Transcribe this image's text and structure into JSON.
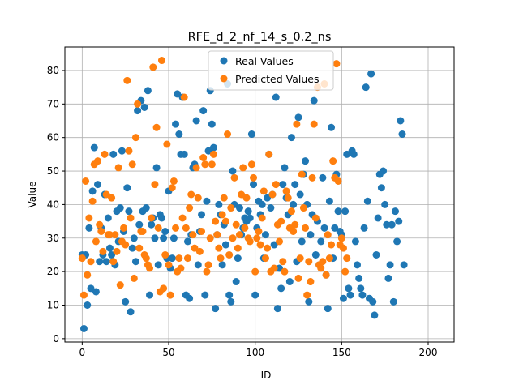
{
  "chart_data": {
    "type": "scatter",
    "title": "RFE_d_2_nf_14_s_0.2_ns",
    "xlabel": "ID",
    "ylabel": "Value",
    "xlim": [
      -10,
      215
    ],
    "ylim": [
      -1,
      87
    ],
    "grid": true,
    "legend_position": "top-right",
    "x_ticks": [
      0,
      50,
      100,
      150,
      200
    ],
    "y_ticks": [
      0,
      10,
      20,
      30,
      40,
      50,
      60,
      70,
      80
    ],
    "series": [
      {
        "name": "Real Values",
        "color": "#1f77b4",
        "points": [
          [
            0,
            25
          ],
          [
            1,
            3
          ],
          [
            2,
            25
          ],
          [
            3,
            10
          ],
          [
            4,
            33
          ],
          [
            5,
            15
          ],
          [
            6,
            44
          ],
          [
            7,
            57
          ],
          [
            8,
            14
          ],
          [
            9,
            46
          ],
          [
            10,
            23
          ],
          [
            11,
            33
          ],
          [
            12,
            25
          ],
          [
            13,
            43
          ],
          [
            14,
            23
          ],
          [
            15,
            36
          ],
          [
            16,
            27
          ],
          [
            17,
            25
          ],
          [
            18,
            55
          ],
          [
            19,
            22
          ],
          [
            20,
            38
          ],
          [
            21,
            29
          ],
          [
            22,
            39
          ],
          [
            23,
            56
          ],
          [
            24,
            32
          ],
          [
            25,
            11
          ],
          [
            26,
            45
          ],
          [
            27,
            38
          ],
          [
            28,
            8
          ],
          [
            29,
            27
          ],
          [
            30,
            30
          ],
          [
            31,
            23
          ],
          [
            32,
            68
          ],
          [
            33,
            34
          ],
          [
            34,
            71
          ],
          [
            35,
            38
          ],
          [
            36,
            69
          ],
          [
            37,
            39
          ],
          [
            38,
            74
          ],
          [
            39,
            13
          ],
          [
            40,
            34
          ],
          [
            41,
            36
          ],
          [
            42,
            30
          ],
          [
            43,
            51
          ],
          [
            44,
            22
          ],
          [
            45,
            37
          ],
          [
            46,
            36
          ],
          [
            47,
            30
          ],
          [
            48,
            32
          ],
          [
            49,
            24
          ],
          [
            50,
            44
          ],
          [
            51,
            21
          ],
          [
            52,
            24
          ],
          [
            53,
            30
          ],
          [
            54,
            64
          ],
          [
            55,
            73
          ],
          [
            56,
            61
          ],
          [
            57,
            55
          ],
          [
            58,
            72
          ],
          [
            59,
            55
          ],
          [
            60,
            13
          ],
          [
            61,
            29
          ],
          [
            62,
            12
          ],
          [
            63,
            31
          ],
          [
            64,
            51
          ],
          [
            65,
            52
          ],
          [
            66,
            65
          ],
          [
            67,
            22
          ],
          [
            68,
            32
          ],
          [
            69,
            37
          ],
          [
            70,
            68
          ],
          [
            71,
            13
          ],
          [
            72,
            41
          ],
          [
            73,
            56
          ],
          [
            74,
            74
          ],
          [
            75,
            64
          ],
          [
            76,
            57
          ],
          [
            77,
            9
          ],
          [
            78,
            31
          ],
          [
            79,
            40
          ],
          [
            80,
            37
          ],
          [
            81,
            22
          ],
          [
            82,
            34
          ],
          [
            83,
            28
          ],
          [
            84,
            76
          ],
          [
            85,
            13
          ],
          [
            86,
            11
          ],
          [
            87,
            50
          ],
          [
            88,
            40
          ],
          [
            89,
            17
          ],
          [
            90,
            24
          ],
          [
            91,
            39
          ],
          [
            92,
            31
          ],
          [
            93,
            33
          ],
          [
            94,
            36
          ],
          [
            95,
            35
          ],
          [
            96,
            38
          ],
          [
            97,
            36
          ],
          [
            98,
            61
          ],
          [
            99,
            46
          ],
          [
            100,
            13
          ],
          [
            101,
            33
          ],
          [
            102,
            41
          ],
          [
            103,
            37
          ],
          [
            104,
            40
          ],
          [
            105,
            24
          ],
          [
            106,
            31
          ],
          [
            107,
            42
          ],
          [
            108,
            55
          ],
          [
            109,
            39
          ],
          [
            110,
            43
          ],
          [
            111,
            28
          ],
          [
            112,
            72
          ],
          [
            113,
            9
          ],
          [
            114,
            21
          ],
          [
            115,
            15
          ],
          [
            116,
            46
          ],
          [
            117,
            51
          ],
          [
            118,
            42
          ],
          [
            119,
            37
          ],
          [
            120,
            17
          ],
          [
            121,
            60
          ],
          [
            122,
            40
          ],
          [
            123,
            46
          ],
          [
            124,
            23
          ],
          [
            125,
            66
          ],
          [
            126,
            43
          ],
          [
            127,
            29
          ],
          [
            128,
            49
          ],
          [
            129,
            53
          ],
          [
            130,
            40
          ],
          [
            131,
            11
          ],
          [
            132,
            31
          ],
          [
            133,
            37
          ],
          [
            134,
            71
          ],
          [
            135,
            25
          ],
          [
            136,
            35
          ],
          [
            137,
            22
          ],
          [
            138,
            29
          ],
          [
            139,
            48
          ],
          [
            140,
            33
          ],
          [
            141,
            19
          ],
          [
            142,
            9
          ],
          [
            143,
            41
          ],
          [
            144,
            63
          ],
          [
            145,
            24
          ],
          [
            146,
            33
          ],
          [
            147,
            49
          ],
          [
            148,
            38
          ],
          [
            149,
            32
          ],
          [
            150,
            31
          ],
          [
            151,
            12
          ],
          [
            152,
            38
          ],
          [
            153,
            55
          ],
          [
            154,
            15
          ],
          [
            155,
            13
          ],
          [
            156,
            56
          ],
          [
            157,
            55
          ],
          [
            158,
            29
          ],
          [
            159,
            22
          ],
          [
            160,
            18
          ],
          [
            161,
            15
          ],
          [
            162,
            13
          ],
          [
            163,
            33
          ],
          [
            164,
            75
          ],
          [
            165,
            41
          ],
          [
            166,
            12
          ],
          [
            167,
            79
          ],
          [
            168,
            11
          ],
          [
            169,
            7
          ],
          [
            170,
            25
          ],
          [
            171,
            36
          ],
          [
            172,
            49
          ],
          [
            173,
            45
          ],
          [
            174,
            50
          ],
          [
            175,
            40
          ],
          [
            176,
            34
          ],
          [
            177,
            18
          ],
          [
            178,
            22
          ],
          [
            179,
            34
          ],
          [
            180,
            11
          ],
          [
            181,
            38
          ],
          [
            182,
            29
          ],
          [
            183,
            35
          ],
          [
            184,
            65
          ],
          [
            185,
            61
          ],
          [
            186,
            22
          ]
        ]
      },
      {
        "name": "Predicted Values",
        "color": "#ff7f0e",
        "points": [
          [
            0,
            24
          ],
          [
            1,
            13
          ],
          [
            2,
            47
          ],
          [
            3,
            19
          ],
          [
            4,
            36
          ],
          [
            5,
            23
          ],
          [
            6,
            41
          ],
          [
            7,
            52
          ],
          [
            8,
            29
          ],
          [
            9,
            53
          ],
          [
            10,
            34
          ],
          [
            11,
            32
          ],
          [
            12,
            26
          ],
          [
            13,
            55
          ],
          [
            14,
            43
          ],
          [
            15,
            31
          ],
          [
            16,
            31
          ],
          [
            17,
            42
          ],
          [
            18,
            23
          ],
          [
            19,
            31
          ],
          [
            20,
            26
          ],
          [
            21,
            51
          ],
          [
            22,
            16
          ],
          [
            23,
            29
          ],
          [
            24,
            33
          ],
          [
            25,
            28
          ],
          [
            26,
            77
          ],
          [
            27,
            56
          ],
          [
            28,
            36
          ],
          [
            29,
            52
          ],
          [
            30,
            18
          ],
          [
            31,
            60
          ],
          [
            32,
            70
          ],
          [
            33,
            27
          ],
          [
            34,
            32
          ],
          [
            35,
            32
          ],
          [
            36,
            25
          ],
          [
            37,
            24
          ],
          [
            38,
            22
          ],
          [
            39,
            21
          ],
          [
            40,
            36
          ],
          [
            41,
            81
          ],
          [
            42,
            46
          ],
          [
            43,
            63
          ],
          [
            44,
            33
          ],
          [
            45,
            14
          ],
          [
            46,
            83
          ],
          [
            47,
            15
          ],
          [
            48,
            25
          ],
          [
            49,
            58
          ],
          [
            50,
            22
          ],
          [
            51,
            13
          ],
          [
            52,
            45
          ],
          [
            53,
            47
          ],
          [
            54,
            33
          ],
          [
            55,
            20
          ],
          [
            56,
            24
          ],
          [
            57,
            21
          ],
          [
            58,
            36
          ],
          [
            59,
            72
          ],
          [
            60,
            33
          ],
          [
            61,
            24
          ],
          [
            62,
            39
          ],
          [
            63,
            43
          ],
          [
            64,
            31
          ],
          [
            65,
            27
          ],
          [
            66,
            51
          ],
          [
            67,
            42
          ],
          [
            68,
            26
          ],
          [
            69,
            32
          ],
          [
            70,
            54
          ],
          [
            71,
            52
          ],
          [
            72,
            20
          ],
          [
            73,
            22
          ],
          [
            74,
            30
          ],
          [
            75,
            52
          ],
          [
            76,
            55
          ],
          [
            77,
            35
          ],
          [
            78,
            31
          ],
          [
            79,
            27
          ],
          [
            80,
            24
          ],
          [
            81,
            37
          ],
          [
            82,
            42
          ],
          [
            83,
            35
          ],
          [
            84,
            61
          ],
          [
            85,
            25
          ],
          [
            86,
            39
          ],
          [
            87,
            30
          ],
          [
            88,
            48
          ],
          [
            89,
            34
          ],
          [
            90,
            27
          ],
          [
            91,
            31
          ],
          [
            92,
            43
          ],
          [
            93,
            51
          ],
          [
            94,
            33
          ],
          [
            95,
            42
          ],
          [
            96,
            30
          ],
          [
            97,
            29
          ],
          [
            98,
            52
          ],
          [
            99,
            48
          ],
          [
            100,
            20
          ],
          [
            101,
            30
          ],
          [
            102,
            32
          ],
          [
            103,
            28
          ],
          [
            104,
            36
          ],
          [
            105,
            44
          ],
          [
            106,
            24
          ],
          [
            107,
            27
          ],
          [
            108,
            55
          ],
          [
            109,
            20
          ],
          [
            110,
            43
          ],
          [
            111,
            21
          ],
          [
            112,
            46
          ],
          [
            113,
            34
          ],
          [
            114,
            29
          ],
          [
            115,
            35
          ],
          [
            116,
            23
          ],
          [
            117,
            20
          ],
          [
            118,
            44
          ],
          [
            119,
            42
          ],
          [
            120,
            33
          ],
          [
            121,
            38
          ],
          [
            122,
            32
          ],
          [
            123,
            34
          ],
          [
            124,
            64
          ],
          [
            125,
            18
          ],
          [
            126,
            24
          ],
          [
            127,
            49
          ],
          [
            128,
            39
          ],
          [
            129,
            33
          ],
          [
            130,
            13
          ],
          [
            131,
            23
          ],
          [
            132,
            17
          ],
          [
            133,
            48
          ],
          [
            134,
            64
          ],
          [
            135,
            36
          ],
          [
            136,
            75
          ],
          [
            137,
            22
          ],
          [
            138,
            21
          ],
          [
            139,
            23
          ],
          [
            140,
            76
          ],
          [
            141,
            19
          ],
          [
            142,
            31
          ],
          [
            143,
            24
          ],
          [
            144,
            28
          ],
          [
            145,
            53
          ],
          [
            146,
            48
          ],
          [
            147,
            82
          ],
          [
            148,
            47
          ],
          [
            149,
            28
          ],
          [
            150,
            30
          ],
          [
            151,
            27
          ],
          [
            152,
            20
          ],
          [
            153,
            24
          ]
        ]
      }
    ]
  }
}
